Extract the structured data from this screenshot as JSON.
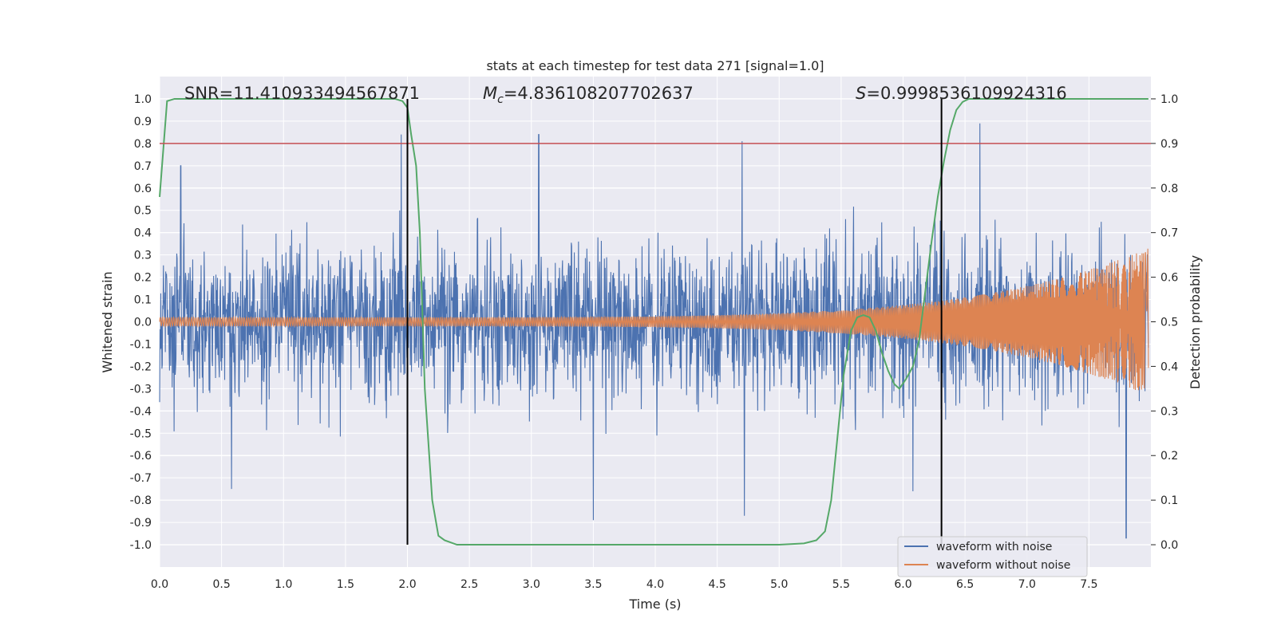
{
  "chart_data": {
    "type": "line",
    "title": "stats at each timestep for test data 271 [signal=1.0]",
    "xlabel": "Time (s)",
    "ylabel": "Whitened strain",
    "y2label": "Detection probability",
    "xlim": [
      0.0,
      8.0
    ],
    "ylim": [
      -1.1,
      1.1
    ],
    "y2lim": [
      -0.05,
      1.05
    ],
    "xticks": [
      "0.0",
      "0.5",
      "1.0",
      "1.5",
      "2.0",
      "2.5",
      "3.0",
      "3.5",
      "4.0",
      "4.5",
      "5.0",
      "5.5",
      "6.0",
      "6.5",
      "7.0",
      "7.5"
    ],
    "yticks": [
      "1.0",
      "0.9",
      "0.8",
      "0.7",
      "0.6",
      "0.5",
      "0.4",
      "0.3",
      "0.2",
      "0.1",
      "0.0",
      "-0.1",
      "-0.2",
      "-0.3",
      "-0.4",
      "-0.5",
      "-0.6",
      "-0.7",
      "-0.8",
      "-0.9",
      "-1.0"
    ],
    "y2ticks": [
      "1.0",
      "0.9",
      "0.8",
      "0.7",
      "0.6",
      "0.5",
      "0.4",
      "0.3",
      "0.2",
      "0.1",
      "0.0"
    ],
    "annotations": {
      "snr": "SNR=11.410933494567871",
      "mc_symbol": "M",
      "mc_sub": "c",
      "mc_value": "=4.836108207702637",
      "s_symbol": "S",
      "s_value": "=0.9998536109924316"
    },
    "vlines": [
      2.0,
      6.31
    ],
    "hline_y2": 0.9,
    "series": [
      {
        "name": "waveform with noise",
        "color": "#4c72b0",
        "envelope_max": 0.85,
        "peak_spikes": [
          [
            0.17,
            0.7
          ],
          [
            1.95,
            0.84
          ],
          [
            3.06,
            0.84
          ],
          [
            4.7,
            0.81
          ],
          [
            6.62,
            0.89
          ],
          [
            0.58,
            -0.75
          ],
          [
            3.5,
            -0.89
          ],
          [
            4.72,
            -0.87
          ],
          [
            6.08,
            -0.76
          ],
          [
            7.8,
            -0.97
          ]
        ]
      },
      {
        "name": "waveform without noise",
        "color": "#dd8452",
        "amplitude_start": 0.02,
        "amplitude_end": 0.33,
        "t_end": 7.98
      },
      {
        "name": "detection probability",
        "color": "#55a868",
        "x": [
          0.0,
          0.06,
          0.12,
          0.5,
          1.0,
          1.5,
          1.9,
          1.96,
          2.0,
          2.03,
          2.07,
          2.1,
          2.14,
          2.2,
          2.25,
          2.3,
          2.4,
          3.0,
          4.0,
          5.0,
          5.2,
          5.3,
          5.37,
          5.42,
          5.47,
          5.52,
          5.58,
          5.63,
          5.68,
          5.73,
          5.78,
          5.83,
          5.88,
          5.93,
          5.97,
          6.02,
          6.08,
          6.13,
          6.18,
          6.23,
          6.28,
          6.33,
          6.38,
          6.43,
          6.48,
          6.53,
          6.58,
          6.7,
          7.0,
          7.5,
          7.98
        ],
        "y": [
          0.78,
          0.995,
          1.0,
          1.0,
          1.0,
          1.0,
          1.0,
          0.995,
          0.98,
          0.92,
          0.85,
          0.7,
          0.35,
          0.1,
          0.02,
          0.01,
          0.0,
          0.0,
          0.0,
          0.0,
          0.003,
          0.01,
          0.03,
          0.1,
          0.24,
          0.38,
          0.48,
          0.51,
          0.515,
          0.51,
          0.48,
          0.43,
          0.39,
          0.36,
          0.35,
          0.37,
          0.4,
          0.46,
          0.57,
          0.68,
          0.78,
          0.86,
          0.93,
          0.975,
          0.993,
          1.0,
          1.0,
          1.0,
          1.0,
          1.0,
          1.0
        ]
      }
    ],
    "legend": {
      "position": "lower right",
      "entries": [
        "waveform with noise",
        "waveform without noise"
      ]
    },
    "colors": {
      "background": "#eaeaf2",
      "grid": "#ffffff",
      "hline": "#c44e52",
      "vline": "#000000"
    },
    "grid": true
  }
}
